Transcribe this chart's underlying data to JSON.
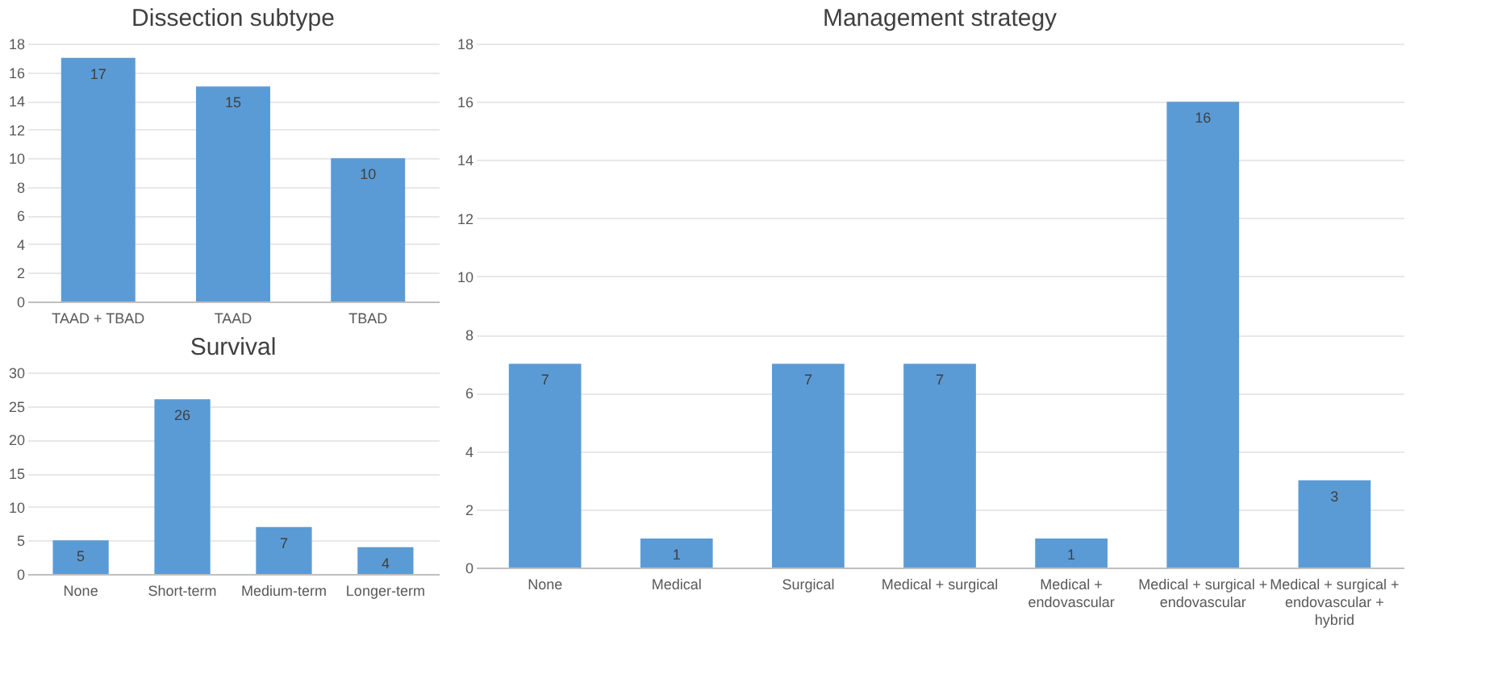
{
  "chart_data": [
    {
      "type": "bar",
      "title": "Dissection subtype",
      "categories": [
        "TAAD + TBAD",
        "TAAD",
        "TBAD"
      ],
      "values": [
        17,
        15,
        10
      ],
      "color": "#5b9bd5",
      "ylim": [
        0,
        18
      ],
      "yticks": [
        0,
        2,
        4,
        6,
        8,
        10,
        12,
        14,
        16,
        18
      ],
      "grid": "y",
      "data_labels": true
    },
    {
      "type": "bar",
      "title": "Survival",
      "categories": [
        "None",
        "Short-term",
        "Medium-term",
        "Longer-term"
      ],
      "values": [
        5,
        26,
        7,
        4
      ],
      "color": "#5b9bd5",
      "ylim": [
        0,
        30
      ],
      "yticks": [
        0,
        5,
        10,
        15,
        20,
        25,
        30
      ],
      "grid": "y",
      "data_labels": true
    },
    {
      "type": "bar",
      "title": "Management strategy",
      "categories": [
        "None",
        "Medical",
        "Surgical",
        "Medical + surgical",
        "Medical + endovascular",
        "Medical + surgical + endovascular",
        "Medical + surgical + endovascular + hybrid"
      ],
      "values": [
        7,
        1,
        7,
        7,
        1,
        16,
        3
      ],
      "color": "#5b9bd5",
      "ylim": [
        0,
        18
      ],
      "yticks": [
        0,
        2,
        4,
        6,
        8,
        10,
        12,
        14,
        16,
        18
      ],
      "grid": "y",
      "data_labels": true
    }
  ]
}
